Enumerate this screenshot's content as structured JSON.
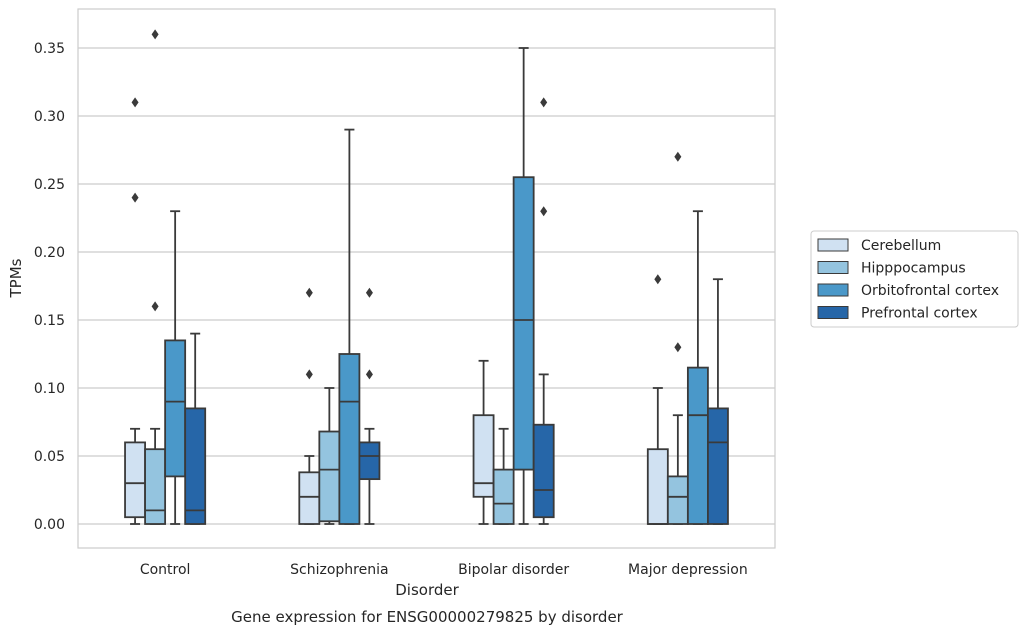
{
  "chart_data": {
    "type": "box",
    "title": "Gene expression for ENSG00000279825 by disorder",
    "xlabel": "Disorder",
    "ylabel": "TPMs",
    "ylim": [
      -0.017,
      0.379
    ],
    "yticks": [
      "0.00",
      "0.05",
      "0.10",
      "0.15",
      "0.20",
      "0.25",
      "0.30",
      "0.35"
    ],
    "ytick_values": [
      0,
      0.05,
      0.1,
      0.15,
      0.2,
      0.25,
      0.3,
      0.35
    ],
    "grid": "horizontal",
    "legend_position": "right",
    "categories": [
      "Control",
      "Schizophrenia",
      "Bipolar disorder",
      "Major depression"
    ],
    "series": [
      {
        "name": "Cerebellum",
        "color": "#d0e1f2",
        "boxes": [
          {
            "whislo": 0.0,
            "q1": 0.005,
            "med": 0.03,
            "q3": 0.06,
            "whishi": 0.07,
            "fliers": [
              0.24,
              0.31
            ]
          },
          {
            "whislo": 0.0,
            "q1": 0.0,
            "med": 0.02,
            "q3": 0.038,
            "whishi": 0.05,
            "fliers": [
              0.11,
              0.17
            ]
          },
          {
            "whislo": 0.0,
            "q1": 0.02,
            "med": 0.03,
            "q3": 0.08,
            "whishi": 0.12,
            "fliers": []
          },
          {
            "whislo": 0.0,
            "q1": 0.0,
            "med": 0.0,
            "q3": 0.055,
            "whishi": 0.1,
            "fliers": [
              0.18
            ]
          }
        ]
      },
      {
        "name": "Hipppocampus",
        "color": "#94c4df",
        "boxes": [
          {
            "whislo": 0.0,
            "q1": 0.0,
            "med": 0.01,
            "q3": 0.055,
            "whishi": 0.07,
            "fliers": [
              0.16,
              0.36
            ]
          },
          {
            "whislo": 0.0,
            "q1": 0.002,
            "med": 0.04,
            "q3": 0.068,
            "whishi": 0.1,
            "fliers": []
          },
          {
            "whislo": 0.0,
            "q1": 0.0,
            "med": 0.015,
            "q3": 0.04,
            "whishi": 0.07,
            "fliers": []
          },
          {
            "whislo": 0.0,
            "q1": 0.0,
            "med": 0.02,
            "q3": 0.035,
            "whishi": 0.08,
            "fliers": [
              0.13,
              0.27
            ]
          }
        ]
      },
      {
        "name": "Orbitofrontal cortex",
        "color": "#4a98c9",
        "boxes": [
          {
            "whislo": 0.0,
            "q1": 0.035,
            "med": 0.09,
            "q3": 0.135,
            "whishi": 0.23,
            "fliers": []
          },
          {
            "whislo": 0.0,
            "q1": 0.0,
            "med": 0.09,
            "q3": 0.125,
            "whishi": 0.29,
            "fliers": []
          },
          {
            "whislo": 0.0,
            "q1": 0.04,
            "med": 0.15,
            "q3": 0.255,
            "whishi": 0.35,
            "fliers": []
          },
          {
            "whislo": 0.0,
            "q1": 0.0,
            "med": 0.08,
            "q3": 0.115,
            "whishi": 0.23,
            "fliers": []
          }
        ]
      },
      {
        "name": "Prefrontal cortex",
        "color": "#2666a8",
        "boxes": [
          {
            "whislo": 0.0,
            "q1": 0.0,
            "med": 0.01,
            "q3": 0.085,
            "whishi": 0.14,
            "fliers": []
          },
          {
            "whislo": 0.0,
            "q1": 0.033,
            "med": 0.05,
            "q3": 0.06,
            "whishi": 0.07,
            "fliers": [
              0.11,
              0.17
            ]
          },
          {
            "whislo": 0.0,
            "q1": 0.005,
            "med": 0.025,
            "q3": 0.073,
            "whishi": 0.11,
            "fliers": [
              0.23,
              0.31
            ]
          },
          {
            "whislo": 0.0,
            "q1": 0.0,
            "med": 0.06,
            "q3": 0.085,
            "whishi": 0.18,
            "fliers": []
          }
        ]
      }
    ]
  },
  "colors": {
    "grid": "#cccccc",
    "frame": "#cccccc",
    "box_edge": "#3a3a3a",
    "text": "#262626"
  }
}
